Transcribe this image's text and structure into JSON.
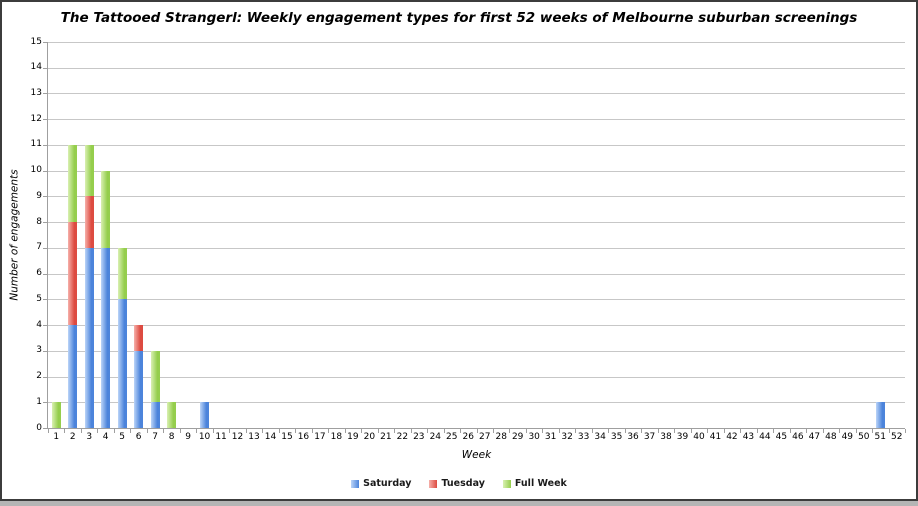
{
  "window": {
    "frame_color": "#3c3c3c"
  },
  "chart_data": {
    "type": "bar",
    "stacked": true,
    "title": "The Tattooed Strangerl: Weekly engagement types for first 52 weeks of Melbourne suburban screenings",
    "xlabel": "Week",
    "ylabel": "Number of engagements",
    "ylim": [
      0,
      15
    ],
    "y_tick_step": 1,
    "grid": true,
    "legend_position": "bottom",
    "categories": [
      1,
      2,
      3,
      4,
      5,
      6,
      7,
      8,
      9,
      10,
      11,
      12,
      13,
      14,
      15,
      16,
      17,
      18,
      19,
      20,
      21,
      22,
      23,
      24,
      25,
      26,
      27,
      28,
      29,
      30,
      31,
      32,
      33,
      34,
      35,
      36,
      37,
      38,
      39,
      40,
      41,
      42,
      43,
      44,
      45,
      46,
      47,
      48,
      49,
      50,
      51,
      52
    ],
    "series": [
      {
        "name": "Saturday",
        "color_light": "#bbd4f8",
        "color_dark": "#4c84db",
        "values": [
          0,
          4,
          7,
          7,
          5,
          3,
          1,
          0,
          0,
          1,
          0,
          0,
          0,
          0,
          0,
          0,
          0,
          0,
          0,
          0,
          0,
          0,
          0,
          0,
          0,
          0,
          0,
          0,
          0,
          0,
          0,
          0,
          0,
          0,
          0,
          0,
          0,
          0,
          0,
          0,
          0,
          0,
          0,
          0,
          0,
          0,
          0,
          0,
          0,
          0,
          1,
          0
        ]
      },
      {
        "name": "Tuesday",
        "color_light": "#f6b0aa",
        "color_dark": "#dd4b41",
        "values": [
          0,
          4,
          2,
          0,
          0,
          1,
          0,
          0,
          0,
          0,
          0,
          0,
          0,
          0,
          0,
          0,
          0,
          0,
          0,
          0,
          0,
          0,
          0,
          0,
          0,
          0,
          0,
          0,
          0,
          0,
          0,
          0,
          0,
          0,
          0,
          0,
          0,
          0,
          0,
          0,
          0,
          0,
          0,
          0,
          0,
          0,
          0,
          0,
          0,
          0,
          0,
          0
        ]
      },
      {
        "name": "Full Week",
        "color_light": "#d9f0b2",
        "color_dark": "#95ce4d",
        "values": [
          1,
          3,
          2,
          3,
          2,
          0,
          2,
          1,
          0,
          0,
          0,
          0,
          0,
          0,
          0,
          0,
          0,
          0,
          0,
          0,
          0,
          0,
          0,
          0,
          0,
          0,
          0,
          0,
          0,
          0,
          0,
          0,
          0,
          0,
          0,
          0,
          0,
          0,
          0,
          0,
          0,
          0,
          0,
          0,
          0,
          0,
          0,
          0,
          0,
          0,
          0,
          0
        ]
      }
    ]
  }
}
